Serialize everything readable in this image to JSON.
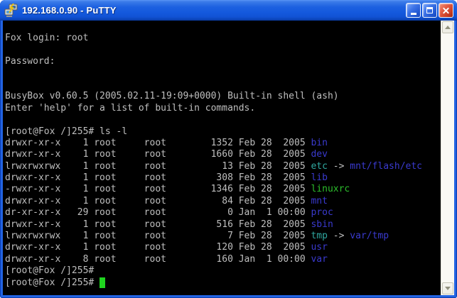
{
  "window": {
    "title": "192.168.0.90 - PuTTY"
  },
  "colors": {
    "fg": "#BFBFBF",
    "dir": "#3A3ACF",
    "symlink": "#2FA8A0",
    "exec": "#2CBE2C",
    "cursor": "#1FD41F",
    "terminal_bg": "#000000",
    "titlebar_blue": "#1459DD",
    "close_button_red": "#C73D24"
  },
  "icons": {
    "titlebar_icon": "putty-terminal-icon",
    "minimize": "minimize-icon",
    "maximize": "maximize-icon",
    "close": "close-icon",
    "scroll_up": "chevron-up-icon",
    "scroll_down": "chevron-down-icon"
  },
  "terminal": {
    "lines": [
      {
        "segments": []
      },
      {
        "segments": [
          {
            "t": "Fox login: root",
            "c": "fg"
          }
        ]
      },
      {
        "segments": []
      },
      {
        "segments": [
          {
            "t": "Password:",
            "c": "fg"
          }
        ]
      },
      {
        "segments": []
      },
      {
        "segments": []
      },
      {
        "segments": [
          {
            "t": "BusyBox v0.60.5 (2005.02.11-19:09+0000) Built-in shell (ash)",
            "c": "fg"
          }
        ]
      },
      {
        "segments": [
          {
            "t": "Enter 'help' for a list of built-in commands.",
            "c": "fg"
          }
        ]
      },
      {
        "segments": []
      },
      {
        "segments": [
          {
            "t": "[root@Fox /]255# ls -l",
            "c": "fg"
          }
        ]
      },
      {
        "segments": [
          {
            "t": "drwxr-xr-x    1 root     root        1352 Feb 28  2005 ",
            "c": "fg"
          },
          {
            "t": "bin",
            "c": "dir"
          }
        ]
      },
      {
        "segments": [
          {
            "t": "drwxr-xr-x    1 root     root        1660 Feb 28  2005 ",
            "c": "fg"
          },
          {
            "t": "dev",
            "c": "dir"
          }
        ]
      },
      {
        "segments": [
          {
            "t": "lrwxrwxrwx    1 root     root          13 Feb 28  2005 ",
            "c": "fg"
          },
          {
            "t": "etc",
            "c": "symlink"
          },
          {
            "t": " -> ",
            "c": "fg"
          },
          {
            "t": "mnt/flash/etc",
            "c": "dir"
          }
        ]
      },
      {
        "segments": [
          {
            "t": "drwxr-xr-x    1 root     root         308 Feb 28  2005 ",
            "c": "fg"
          },
          {
            "t": "lib",
            "c": "dir"
          }
        ]
      },
      {
        "segments": [
          {
            "t": "-rwxr-xr-x    1 root     root        1346 Feb 28  2005 ",
            "c": "fg"
          },
          {
            "t": "linuxrc",
            "c": "exec"
          }
        ]
      },
      {
        "segments": [
          {
            "t": "drwxr-xr-x    1 root     root          84 Feb 28  2005 ",
            "c": "fg"
          },
          {
            "t": "mnt",
            "c": "dir"
          }
        ]
      },
      {
        "segments": [
          {
            "t": "dr-xr-xr-x   29 root     root           0 Jan  1 00:00 ",
            "c": "fg"
          },
          {
            "t": "proc",
            "c": "dir"
          }
        ]
      },
      {
        "segments": [
          {
            "t": "drwxr-xr-x    1 root     root         516 Feb 28  2005 ",
            "c": "fg"
          },
          {
            "t": "sbin",
            "c": "dir"
          }
        ]
      },
      {
        "segments": [
          {
            "t": "lrwxrwxrwx    1 root     root           7 Feb 28  2005 ",
            "c": "fg"
          },
          {
            "t": "tmp",
            "c": "symlink"
          },
          {
            "t": " -> ",
            "c": "fg"
          },
          {
            "t": "var/tmp",
            "c": "dir"
          }
        ]
      },
      {
        "segments": [
          {
            "t": "drwxr-xr-x    1 root     root         120 Feb 28  2005 ",
            "c": "fg"
          },
          {
            "t": "usr",
            "c": "dir"
          }
        ]
      },
      {
        "segments": [
          {
            "t": "drwxr-xr-x    8 root     root         160 Jan  1 00:00 ",
            "c": "fg"
          },
          {
            "t": "var",
            "c": "dir"
          }
        ]
      },
      {
        "segments": [
          {
            "t": "[root@Fox /]255#",
            "c": "fg"
          }
        ]
      },
      {
        "segments": [
          {
            "t": "[root@Fox /]255# ",
            "c": "fg"
          },
          {
            "cursor": true
          }
        ]
      },
      {
        "segments": []
      }
    ]
  }
}
